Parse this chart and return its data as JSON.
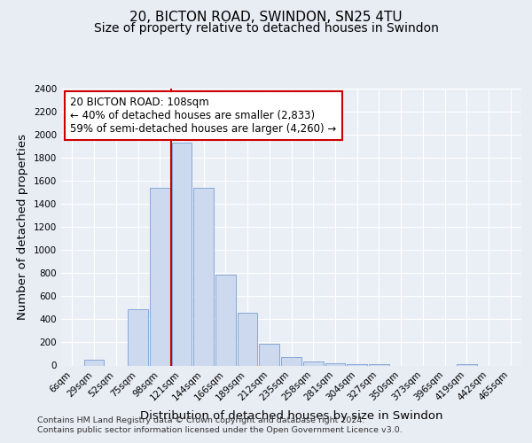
{
  "title_line1": "20, BICTON ROAD, SWINDON, SN25 4TU",
  "title_line2": "Size of property relative to detached houses in Swindon",
  "xlabel": "Distribution of detached houses by size in Swindon",
  "ylabel": "Number of detached properties",
  "bar_categories": [
    "6sqm",
    "29sqm",
    "52sqm",
    "75sqm",
    "98sqm",
    "121sqm",
    "144sqm",
    "166sqm",
    "189sqm",
    "212sqm",
    "235sqm",
    "258sqm",
    "281sqm",
    "304sqm",
    "327sqm",
    "350sqm",
    "373sqm",
    "396sqm",
    "419sqm",
    "442sqm",
    "465sqm"
  ],
  "bar_values": [
    0,
    50,
    0,
    490,
    1540,
    1930,
    1540,
    790,
    460,
    190,
    75,
    35,
    20,
    15,
    10,
    0,
    0,
    0,
    15,
    0,
    0
  ],
  "bar_color": "#ccd9ee",
  "bar_edge_color": "#7a9fd4",
  "vline_color": "#cc0000",
  "annotation_text": "20 BICTON ROAD: 108sqm\n← 40% of detached houses are smaller (2,833)\n59% of semi-detached houses are larger (4,260) →",
  "annotation_box_facecolor": "#ffffff",
  "annotation_box_edgecolor": "#cc0000",
  "ylim": [
    0,
    2400
  ],
  "ytick_interval": 200,
  "bg_color": "#e8edf4",
  "plot_bg_color": "#eaeff6",
  "footer_line1": "Contains HM Land Registry data © Crown copyright and database right 2024.",
  "footer_line2": "Contains public sector information licensed under the Open Government Licence v3.0.",
  "title_fontsize": 11,
  "subtitle_fontsize": 10,
  "tick_fontsize": 7.5,
  "label_fontsize": 9.5
}
